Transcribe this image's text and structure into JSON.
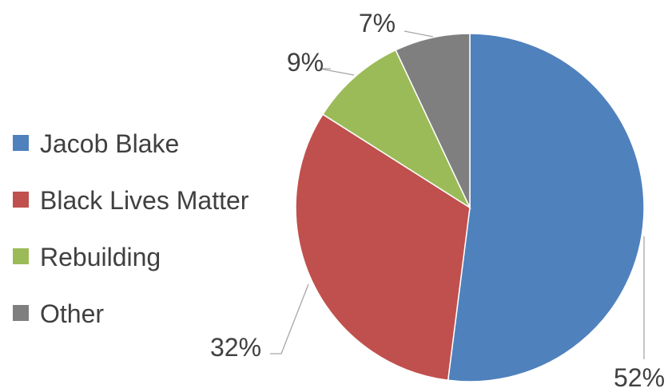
{
  "chart_data": {
    "type": "pie",
    "title": "",
    "categories": [
      "Jacob Blake",
      "Black Lives Matter",
      "Rebuilding",
      "Other"
    ],
    "values": [
      52,
      32,
      9,
      7
    ],
    "labels": [
      "52%",
      "32%",
      "9%",
      "7%"
    ],
    "colors": [
      "#4f81bd",
      "#c0504d",
      "#9bbb59",
      "#7f7f7f"
    ],
    "legend_position": "left",
    "start_angle_deg": 0,
    "direction": "clockwise"
  }
}
